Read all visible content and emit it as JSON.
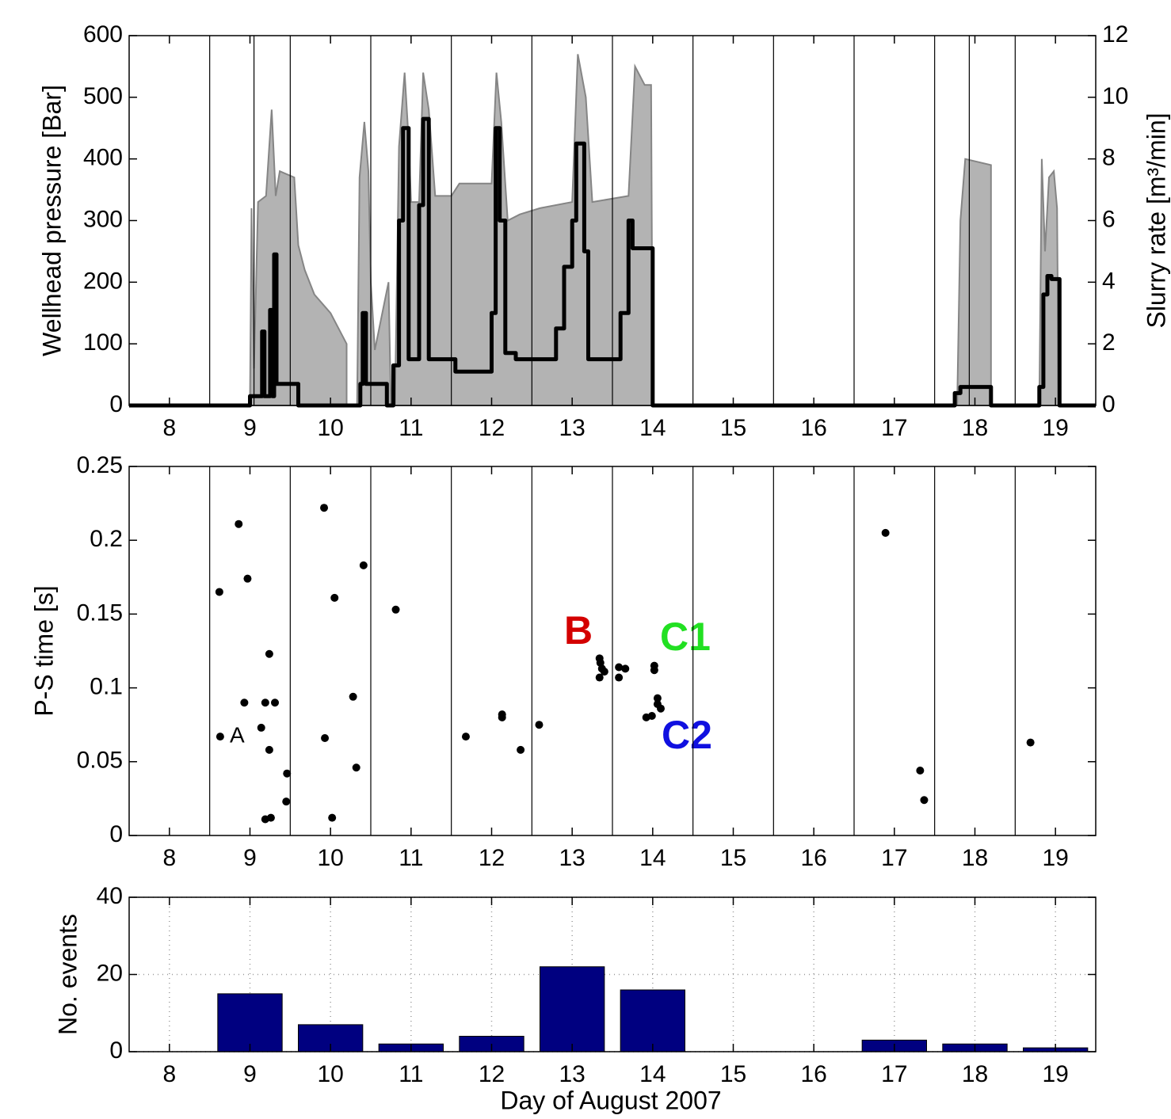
{
  "chart_data": [
    {
      "type": "line",
      "ylabel": "Wellhead pressure [Bar]",
      "y2label": "Slurry rate [m³/min]",
      "xlim": [
        7.5,
        19.5
      ],
      "xticks": [
        8,
        9,
        10,
        11,
        12,
        13,
        14,
        15,
        16,
        17,
        18,
        19
      ],
      "ylim": [
        0,
        600
      ],
      "yticks": [
        0,
        100,
        200,
        300,
        400,
        500,
        600
      ],
      "y2lim": [
        0,
        12
      ],
      "y2ticks": [
        0,
        2,
        4,
        6,
        8,
        10,
        12
      ],
      "vlines": [
        8.5,
        9.05,
        9.5,
        10.5,
        11.5,
        12.5,
        13.5,
        14.5,
        15.5,
        16.5,
        17.5,
        17.93,
        18.5
      ],
      "series": [
        {
          "name": "Wellhead pressure",
          "color": "#b3b3b3",
          "area": true,
          "x": [
            7.5,
            9.0,
            9.02,
            9.05,
            9.1,
            9.2,
            9.27,
            9.32,
            9.37,
            9.55,
            9.6,
            9.68,
            9.8,
            10.0,
            10.2,
            10.2,
            10.33,
            10.36,
            10.42,
            10.47,
            10.5,
            10.55,
            10.72,
            10.75,
            10.8,
            10.85,
            10.92,
            10.97,
            11.0,
            11.1,
            11.15,
            11.22,
            11.3,
            11.5,
            11.6,
            12.0,
            12.06,
            12.12,
            12.2,
            12.35,
            12.6,
            13.0,
            13.07,
            13.17,
            13.25,
            13.7,
            13.78,
            13.9,
            13.98,
            14.0,
            17.78,
            17.82,
            17.88,
            18.2,
            18.2,
            18.8,
            18.83,
            18.87,
            18.92,
            18.98,
            19.02,
            19.04,
            19.5
          ],
          "values": [
            0,
            0,
            320,
            60,
            330,
            340,
            480,
            340,
            380,
            370,
            260,
            220,
            180,
            150,
            100,
            0,
            0,
            370,
            460,
            380,
            200,
            90,
            200,
            0,
            0,
            420,
            540,
            430,
            330,
            330,
            540,
            480,
            340,
            340,
            360,
            360,
            540,
            460,
            300,
            310,
            320,
            330,
            570,
            500,
            330,
            340,
            550,
            520,
            520,
            0,
            0,
            300,
            400,
            390,
            0,
            0,
            400,
            250,
            370,
            380,
            320,
            0,
            0
          ]
        },
        {
          "name": "Slurry rate",
          "color": "#000000",
          "axis": "y2",
          "x": [
            7.5,
            9.0,
            9.0,
            9.15,
            9.15,
            9.18,
            9.18,
            9.25,
            9.25,
            9.28,
            9.28,
            9.3,
            9.3,
            9.33,
            9.33,
            9.6,
            9.6,
            10.37,
            10.37,
            10.4,
            10.4,
            10.44,
            10.44,
            10.7,
            10.7,
            10.78,
            10.78,
            10.85,
            10.85,
            10.9,
            10.9,
            10.97,
            10.97,
            11.1,
            11.1,
            11.15,
            11.15,
            11.22,
            11.22,
            11.55,
            11.55,
            12.0,
            12.0,
            12.05,
            12.05,
            12.1,
            12.1,
            12.17,
            12.17,
            12.3,
            12.3,
            12.8,
            12.8,
            12.9,
            12.9,
            13.0,
            13.0,
            13.05,
            13.05,
            13.15,
            13.15,
            13.2,
            13.2,
            13.6,
            13.6,
            13.7,
            13.7,
            13.75,
            13.75,
            14.0,
            14.0,
            17.75,
            17.75,
            17.82,
            17.82,
            18.2,
            18.2,
            18.8,
            18.8,
            18.85,
            18.85,
            18.9,
            18.9,
            18.95,
            18.95,
            19.05,
            19.05,
            19.5
          ],
          "values": [
            0,
            0,
            0.3,
            0.3,
            2.4,
            2.4,
            0.3,
            0.3,
            3.1,
            3.1,
            0.3,
            0.3,
            4.9,
            4.9,
            0.7,
            0.7,
            0,
            0,
            0.7,
            0.7,
            3.0,
            3.0,
            0.7,
            0.7,
            0,
            0,
            1.3,
            1.3,
            6.0,
            6.0,
            9.0,
            9.0,
            1.5,
            1.5,
            6.5,
            6.5,
            9.3,
            9.3,
            1.5,
            1.5,
            1.1,
            1.1,
            3.0,
            3.0,
            9.0,
            9.0,
            6.0,
            6.0,
            1.7,
            1.7,
            1.5,
            1.5,
            2.5,
            2.5,
            4.5,
            4.5,
            6.0,
            6.0,
            8.5,
            8.5,
            5.0,
            5.0,
            1.5,
            1.5,
            3.0,
            3.0,
            6.0,
            6.0,
            5.1,
            5.1,
            0,
            0,
            0.4,
            0.4,
            0.6,
            0.6,
            0,
            0,
            0.6,
            0.6,
            3.6,
            3.6,
            4.2,
            4.2,
            4.1,
            4.1,
            0,
            0
          ]
        }
      ]
    },
    {
      "type": "scatter",
      "ylabel": "P-S time [s]",
      "xlim": [
        7.5,
        19.5
      ],
      "xticks": [
        8,
        9,
        10,
        11,
        12,
        13,
        14,
        15,
        16,
        17,
        18,
        19
      ],
      "ylim": [
        0,
        0.25
      ],
      "yticks": [
        0,
        0.05,
        0.1,
        0.15,
        0.2,
        0.25
      ],
      "vlines": [
        8.5,
        9.5,
        10.5,
        11.5,
        12.5,
        13.5,
        14.5,
        15.5,
        16.5,
        17.5,
        18.5
      ],
      "color": "#000000",
      "x": [
        8.62,
        8.86,
        8.97,
        8.63,
        8.93,
        9.14,
        9.19,
        9.24,
        9.24,
        9.31,
        9.19,
        9.26,
        9.46,
        9.45,
        9.92,
        9.93,
        10.05,
        10.02,
        10.28,
        10.32,
        10.41,
        10.81,
        11.68,
        12.13,
        12.13,
        12.36,
        12.59,
        13.34,
        13.35,
        13.34,
        13.4,
        13.37,
        13.58,
        13.58,
        13.66,
        14.02,
        14.02,
        14.06,
        14.06,
        14.1,
        13.92,
        13.99,
        16.89,
        17.32,
        17.37,
        18.69
      ],
      "values": [
        0.165,
        0.211,
        0.174,
        0.067,
        0.09,
        0.073,
        0.09,
        0.123,
        0.058,
        0.09,
        0.011,
        0.012,
        0.042,
        0.023,
        0.222,
        0.066,
        0.161,
        0.012,
        0.094,
        0.046,
        0.183,
        0.153,
        0.067,
        0.082,
        0.08,
        0.058,
        0.075,
        0.12,
        0.117,
        0.107,
        0.111,
        0.113,
        0.114,
        0.107,
        0.113,
        0.115,
        0.112,
        0.093,
        0.089,
        0.086,
        0.08,
        0.081,
        0.205,
        0.044,
        0.024,
        0.063
      ],
      "annotations": [
        {
          "text": "A",
          "color": "#000000"
        },
        {
          "text": "B",
          "color": "#d40000"
        },
        {
          "text": "C1",
          "color": "#22e022"
        },
        {
          "text": "C2",
          "color": "#1010e0"
        }
      ]
    },
    {
      "type": "bar",
      "ylabel": "No. events",
      "xlabel": "Day of August 2007",
      "xlim": [
        7.5,
        19.5
      ],
      "xticks": [
        8,
        9,
        10,
        11,
        12,
        13,
        14,
        15,
        16,
        17,
        18,
        19
      ],
      "ylim": [
        0,
        40
      ],
      "yticks": [
        0,
        20,
        40
      ],
      "grid": true,
      "color": "#000080",
      "x": [
        8,
        9,
        10,
        11,
        12,
        13,
        14,
        15,
        16,
        17,
        18,
        19
      ],
      "values": [
        0,
        15,
        7,
        2,
        4,
        22,
        16,
        0,
        0,
        3,
        2,
        1
      ]
    }
  ]
}
